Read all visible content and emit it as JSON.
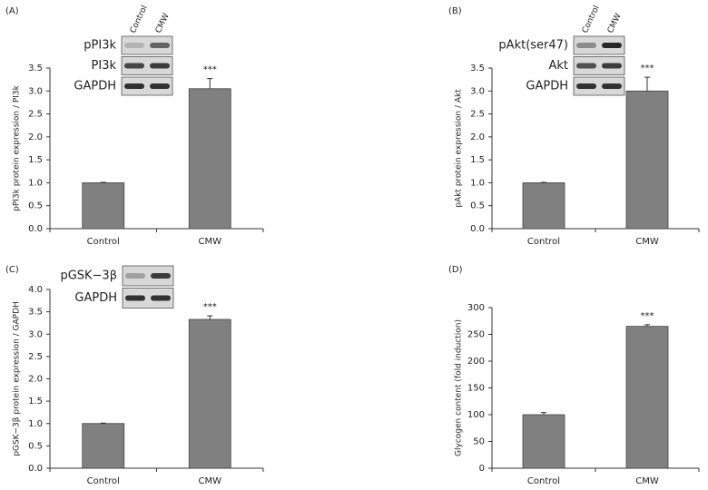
{
  "chart_data": [
    {
      "type": "bar",
      "panel": "(A)",
      "ylabel": "pPI3k protein expression / PI3k",
      "categories": [
        "Control",
        "CMW"
      ],
      "values": [
        1.0,
        3.05
      ],
      "errors": [
        0.01,
        0.22
      ],
      "color": "#808080",
      "annotation": "***",
      "ylim": [
        0,
        3.5
      ],
      "yticks": [
        {
          "value": 0,
          "label": "0.0"
        },
        {
          "value": 0.5,
          "label": "0.5"
        },
        {
          "value": 1,
          "label": "1.0"
        },
        {
          "value": 1.5,
          "label": "1.5"
        },
        {
          "value": 2,
          "label": "2.0"
        },
        {
          "value": 2.5,
          "label": "2.5"
        },
        {
          "value": 3,
          "label": "3.0"
        },
        {
          "value": 3.5,
          "label": "3.5"
        }
      ],
      "blot": {
        "lanes": [
          "Control",
          "CMW"
        ],
        "rows": [
          "pPI3k",
          "PI3k",
          "GAPDH"
        ]
      }
    },
    {
      "type": "bar",
      "panel": "(B)",
      "ylabel": "pAkt protein expression / Akt",
      "categories": [
        "Control",
        "CMW"
      ],
      "values": [
        1.0,
        3.0
      ],
      "errors": [
        0.01,
        0.3
      ],
      "color": "#808080",
      "annotation": "***",
      "ylim": [
        0,
        3.5
      ],
      "yticks": [
        {
          "value": 0,
          "label": "0.0"
        },
        {
          "value": 0.5,
          "label": "0.5"
        },
        {
          "value": 1,
          "label": "1.0"
        },
        {
          "value": 1.5,
          "label": "1.5"
        },
        {
          "value": 2,
          "label": "2.0"
        },
        {
          "value": 2.5,
          "label": "2.5"
        },
        {
          "value": 3,
          "label": "3.0"
        },
        {
          "value": 3.5,
          "label": "3.5"
        }
      ],
      "blot": {
        "lanes": [
          "Control",
          "CMW"
        ],
        "rows": [
          "pAkt(ser47)",
          "Akt",
          "GAPDH"
        ]
      }
    },
    {
      "type": "bar",
      "panel": "(C)",
      "ylabel": "pGSK−3β protein expression / GAPDH",
      "categories": [
        "Control",
        "CMW"
      ],
      "values": [
        1.0,
        3.33
      ],
      "errors": [
        0.01,
        0.08
      ],
      "color": "#808080",
      "annotation": "***",
      "ylim": [
        0,
        4
      ],
      "yticks": [
        {
          "value": 0,
          "label": "0.0"
        },
        {
          "value": 0.5,
          "label": "0.5"
        },
        {
          "value": 1,
          "label": "1.0"
        },
        {
          "value": 1.5,
          "label": "1.5"
        },
        {
          "value": 2,
          "label": "2.0"
        },
        {
          "value": 2.5,
          "label": "2.5"
        },
        {
          "value": 3,
          "label": "3.0"
        },
        {
          "value": 3.5,
          "label": "3.5"
        },
        {
          "value": 4,
          "label": "4.0"
        }
      ],
      "blot": {
        "rows": [
          "pGSK−3β",
          "GAPDH"
        ]
      }
    },
    {
      "type": "bar",
      "panel": "(D)",
      "ylabel": "Glycogen content (fold induction)",
      "categories": [
        "Control",
        "CMW"
      ],
      "values": [
        100,
        265
      ],
      "errors": [
        4,
        3
      ],
      "color": "#808080",
      "annotation": "***",
      "ylim": [
        0,
        300
      ],
      "yticks": [
        0,
        50,
        100,
        150,
        200,
        250,
        300
      ]
    }
  ]
}
